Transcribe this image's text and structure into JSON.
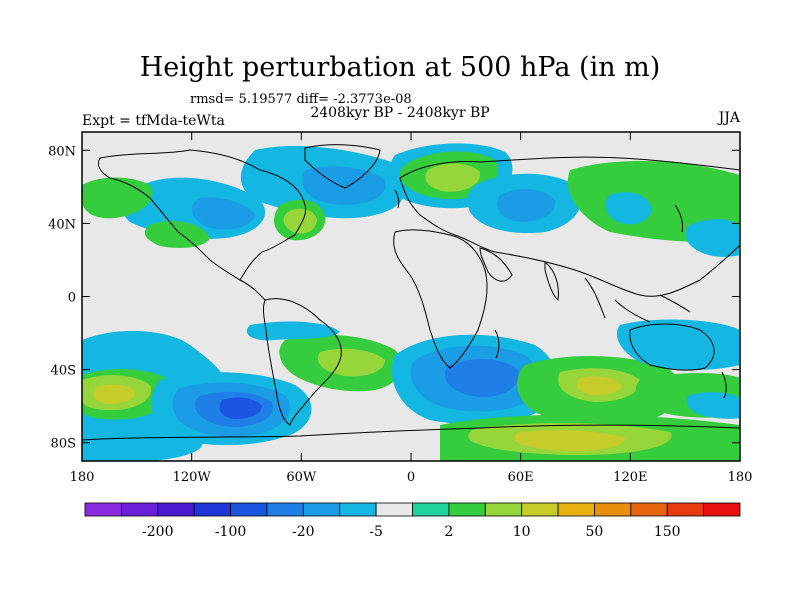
{
  "title": "Height perturbation at 500 hPa (in m)",
  "stats": "rmsd= 5.19577 diff= -2.3773e-08",
  "period": "2408kyr BP - 2408kyr BP",
  "experiment": "Expt = tfMda-teWta",
  "season": "JJA",
  "map": {
    "projection": "cylindrical equidistant",
    "lon_range": [
      -180,
      180
    ],
    "lat_range": [
      -90,
      90
    ],
    "lon_ticks": [
      "180",
      "120W",
      "60W",
      "0",
      "60E",
      "120E",
      "180"
    ],
    "lat_ticks": [
      "80N",
      "40N",
      "0",
      "40S",
      "80S"
    ]
  },
  "colorbar": {
    "colors": [
      "#8a2be2",
      "#6a1fd8",
      "#4b1bd1",
      "#2036d8",
      "#1a56e0",
      "#1f7fe6",
      "#1b9de6",
      "#14b6e2",
      "#e8e8e8",
      "#1fd39a",
      "#35cc3d",
      "#96d63a",
      "#c6cc2a",
      "#e8b10f",
      "#e88f0f",
      "#e8640f",
      "#e83a0f",
      "#e81010"
    ],
    "labels": [
      "-200",
      "-100",
      "-20",
      "-5",
      "2",
      "10",
      "50",
      "150"
    ]
  }
}
